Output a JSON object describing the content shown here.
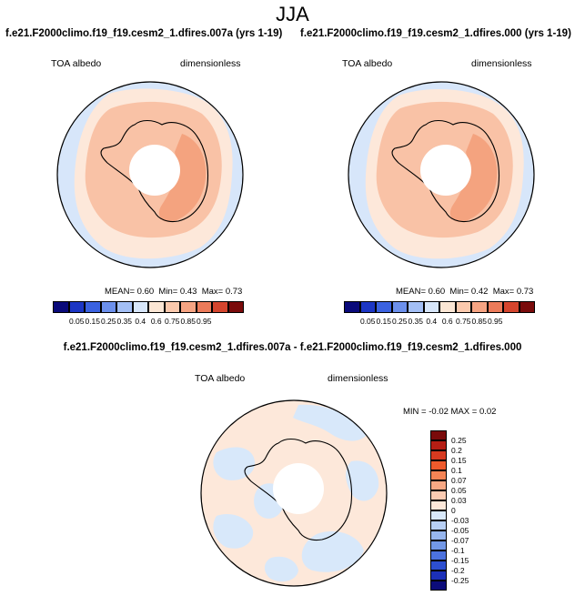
{
  "figure": {
    "title": "JJA"
  },
  "panels": [
    {
      "title": "f.e21.F2000climo.f19_f19.cesm2_1.dfires.007a (yrs 1-19)",
      "left_label": "TOA albedo",
      "right_label": "dimensionless",
      "stats": {
        "mean_label": "MEAN=",
        "mean": "0.60",
        "min_label": "Min=",
        "min": "0.43",
        "max_label": "Max=",
        "max": "0.73"
      }
    },
    {
      "title": "f.e21.F2000climo.f19_f19.cesm2_1.dfires.000 (yrs 1-19)",
      "left_label": "TOA albedo",
      "right_label": "dimensionless",
      "stats": {
        "mean_label": "MEAN=",
        "mean": "0.60",
        "min_label": "Min=",
        "min": "0.42",
        "max_label": "Max=",
        "max": "0.73"
      }
    },
    {
      "title": "f.e21.F2000climo.f19_f19.cesm2_1.dfires.007a - f.e21.F2000climo.f19_f19.cesm2_1.dfires.000",
      "left_label": "TOA albedo",
      "right_label": "dimensionless",
      "stats": {
        "min_label": "MIN =",
        "min": "-0.02",
        "max_label": "MAX =",
        "max": "0.02"
      }
    }
  ],
  "colorbars": {
    "absolute": {
      "ticks": [
        "0.05",
        "0.15",
        "0.25",
        "0.35",
        "0.4",
        "0.6",
        "0.75",
        "0.85",
        "0.95"
      ],
      "colors": [
        "#0a0a7a",
        "#1c36c4",
        "#3b62e0",
        "#6c90ec",
        "#a3bff5",
        "#d7e6fa",
        "#fbe6d4",
        "#fbc9ad",
        "#f6a483",
        "#ec7b5a",
        "#d4452e",
        "#7a0b0b"
      ]
    },
    "difference": {
      "ticks": [
        "0.25",
        "0.2",
        "0.15",
        "0.1",
        "0.07",
        "0.05",
        "0.03",
        "0",
        "-0.03",
        "-0.05",
        "-0.07",
        "-0.1",
        "-0.15",
        "-0.2",
        "-0.25"
      ],
      "colors": [
        "#7a0b0b",
        "#b51e14",
        "#d63a20",
        "#ee5a2c",
        "#f58455",
        "#f7a884",
        "#fbcbb2",
        "#fde8da",
        "#d8e8fa",
        "#b8d0f5",
        "#97b6ee",
        "#7398e6",
        "#4c72de",
        "#2d4fd0",
        "#1c30b8",
        "#0c0c7a"
      ]
    }
  },
  "chart_data": [
    {
      "type": "heatmap",
      "projection": "south polar stereographic",
      "title": "f.e21.F2000climo.f19_f19.cesm2_1.dfires.007a (yrs 1-19)",
      "variable": "TOA albedo",
      "units": "dimensionless",
      "mean": 0.6,
      "min": 0.43,
      "max": 0.73,
      "contour_levels": [
        0.05,
        0.15,
        0.25,
        0.35,
        0.4,
        0.6,
        0.75,
        0.85,
        0.95
      ],
      "regions": [
        {
          "region": "outer ocean ring",
          "range": [
            0.4,
            0.6
          ]
        },
        {
          "region": "mid-latitude band",
          "range": [
            0.6,
            0.75
          ]
        },
        {
          "region": "antarctic interior",
          "range": [
            0.75,
            0.85
          ]
        }
      ]
    },
    {
      "type": "heatmap",
      "projection": "south polar stereographic",
      "title": "f.e21.F2000climo.f19_f19.cesm2_1.dfires.000 (yrs 1-19)",
      "variable": "TOA albedo",
      "units": "dimensionless",
      "mean": 0.6,
      "min": 0.42,
      "max": 0.73,
      "contour_levels": [
        0.05,
        0.15,
        0.25,
        0.35,
        0.4,
        0.6,
        0.75,
        0.85,
        0.95
      ],
      "regions": [
        {
          "region": "outer ocean ring",
          "range": [
            0.4,
            0.6
          ]
        },
        {
          "region": "mid-latitude band",
          "range": [
            0.6,
            0.75
          ]
        },
        {
          "region": "antarctic interior",
          "range": [
            0.75,
            0.85
          ]
        }
      ]
    },
    {
      "type": "heatmap",
      "projection": "south polar stereographic",
      "title": "f.e21.F2000climo.f19_f19.cesm2_1.dfires.007a - f.e21.F2000climo.f19_f19.cesm2_1.dfires.000",
      "variable": "TOA albedo",
      "units": "dimensionless",
      "min": -0.02,
      "max": 0.02,
      "contour_levels": [
        -0.25,
        -0.2,
        -0.15,
        -0.1,
        -0.07,
        -0.05,
        -0.03,
        0,
        0.03,
        0.05,
        0.07,
        0.1,
        0.15,
        0.2,
        0.25
      ],
      "regions": [
        {
          "region": "positive patches",
          "range": [
            0,
            0.03
          ]
        },
        {
          "region": "negative patches",
          "range": [
            -0.03,
            0
          ]
        }
      ]
    }
  ]
}
